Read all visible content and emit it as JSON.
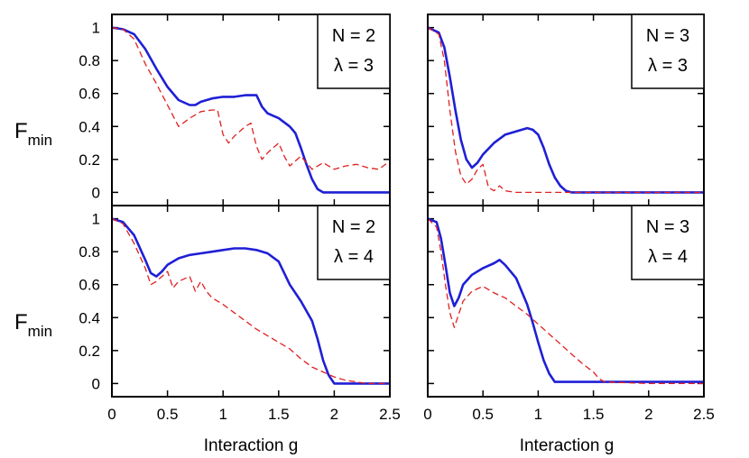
{
  "figure": {
    "ylabel_main": "F",
    "ylabel_sub": "min",
    "xlabel": "Interaction g"
  },
  "chart_data": [
    {
      "type": "line",
      "xlim": [
        0,
        2.5
      ],
      "ylim": [
        -0.08,
        1.08
      ],
      "xticks": [
        0,
        0.5,
        1,
        1.5,
        2,
        2.5
      ],
      "xtick_labels": [
        "0",
        "0.5",
        "1",
        "1.5",
        "2",
        "2.5"
      ],
      "yticks": [
        0,
        0.2,
        0.4,
        0.6,
        0.8,
        1
      ],
      "ytick_labels": [
        "0",
        "0.2",
        "0.4",
        "0.6",
        "0.8",
        "1"
      ],
      "legend_lines": [
        "N = 2",
        "λ = 3"
      ],
      "series": [
        {
          "color": "#1f1fd6",
          "style": "solid",
          "x": [
            0,
            0.1,
            0.2,
            0.3,
            0.4,
            0.5,
            0.6,
            0.7,
            0.75,
            0.8,
            0.9,
            1.0,
            1.1,
            1.2,
            1.25,
            1.3,
            1.35,
            1.4,
            1.5,
            1.6,
            1.65,
            1.7,
            1.75,
            1.8,
            1.85,
            1.9,
            2.0,
            2.2,
            2.5
          ],
          "y": [
            1.0,
            0.99,
            0.96,
            0.87,
            0.75,
            0.64,
            0.56,
            0.53,
            0.53,
            0.55,
            0.57,
            0.58,
            0.58,
            0.59,
            0.59,
            0.59,
            0.52,
            0.48,
            0.45,
            0.4,
            0.36,
            0.27,
            0.17,
            0.08,
            0.02,
            0.0,
            0.0,
            0.0,
            0.0
          ]
        },
        {
          "color": "#e02020",
          "style": "dashed",
          "x": [
            0,
            0.1,
            0.2,
            0.3,
            0.4,
            0.5,
            0.6,
            0.7,
            0.8,
            0.9,
            0.95,
            1.0,
            1.05,
            1.1,
            1.2,
            1.25,
            1.3,
            1.35,
            1.4,
            1.5,
            1.55,
            1.6,
            1.7,
            1.8,
            1.9,
            2.0,
            2.1,
            2.2,
            2.3,
            2.4,
            2.5
          ],
          "y": [
            1.0,
            0.99,
            0.93,
            0.78,
            0.66,
            0.53,
            0.4,
            0.45,
            0.49,
            0.5,
            0.5,
            0.35,
            0.3,
            0.34,
            0.4,
            0.42,
            0.28,
            0.2,
            0.24,
            0.3,
            0.22,
            0.16,
            0.22,
            0.14,
            0.18,
            0.14,
            0.16,
            0.17,
            0.15,
            0.14,
            0.19
          ]
        }
      ]
    },
    {
      "type": "line",
      "xlim": [
        0,
        2.5
      ],
      "ylim": [
        -0.08,
        1.08
      ],
      "xticks": [
        0,
        0.5,
        1,
        1.5,
        2,
        2.5
      ],
      "xtick_labels": [
        "0",
        "0.5",
        "1",
        "1.5",
        "2",
        "2.5"
      ],
      "yticks": [
        0,
        0.2,
        0.4,
        0.6,
        0.8,
        1
      ],
      "ytick_labels": [
        "0",
        "0.2",
        "0.4",
        "0.6",
        "0.8",
        "1"
      ],
      "legend_lines": [
        "N = 3",
        "λ = 3"
      ],
      "series": [
        {
          "color": "#1f1fd6",
          "style": "solid",
          "x": [
            0,
            0.1,
            0.15,
            0.2,
            0.25,
            0.3,
            0.35,
            0.4,
            0.45,
            0.5,
            0.6,
            0.7,
            0.8,
            0.9,
            0.95,
            1.0,
            1.05,
            1.1,
            1.15,
            1.2,
            1.25,
            1.3,
            1.5,
            1.8,
            2.1,
            2.5
          ],
          "y": [
            1.0,
            0.97,
            0.88,
            0.7,
            0.5,
            0.32,
            0.2,
            0.15,
            0.18,
            0.23,
            0.3,
            0.35,
            0.37,
            0.39,
            0.38,
            0.35,
            0.27,
            0.17,
            0.09,
            0.04,
            0.01,
            0.0,
            0.0,
            0.0,
            0.0,
            0.0
          ]
        },
        {
          "color": "#e02020",
          "style": "dashed",
          "x": [
            0,
            0.1,
            0.15,
            0.2,
            0.25,
            0.3,
            0.35,
            0.4,
            0.45,
            0.5,
            0.55,
            0.6,
            0.65,
            0.7,
            0.8,
            1.0,
            1.5,
            2.0,
            2.5
          ],
          "y": [
            1.0,
            0.96,
            0.8,
            0.5,
            0.25,
            0.1,
            0.05,
            0.08,
            0.14,
            0.17,
            0.03,
            0.01,
            0.04,
            0.01,
            0.0,
            0.0,
            0.0,
            0.0,
            0.0
          ]
        }
      ]
    },
    {
      "type": "line",
      "xlim": [
        0,
        2.5
      ],
      "ylim": [
        -0.08,
        1.08
      ],
      "xticks": [
        0,
        0.5,
        1,
        1.5,
        2,
        2.5
      ],
      "xtick_labels": [
        "0",
        "0.5",
        "1",
        "1.5",
        "2",
        "2.5"
      ],
      "yticks": [
        0,
        0.2,
        0.4,
        0.6,
        0.8,
        1
      ],
      "ytick_labels": [
        "0",
        "0.2",
        "0.4",
        "0.6",
        "0.8",
        "1"
      ],
      "legend_lines": [
        "N = 2",
        "λ = 4"
      ],
      "series": [
        {
          "color": "#1f1fd6",
          "style": "solid",
          "x": [
            0,
            0.1,
            0.2,
            0.3,
            0.35,
            0.4,
            0.45,
            0.5,
            0.6,
            0.7,
            0.8,
            0.9,
            1.0,
            1.1,
            1.2,
            1.3,
            1.4,
            1.5,
            1.55,
            1.6,
            1.7,
            1.8,
            1.85,
            1.9,
            1.95,
            2.0,
            2.1,
            2.5
          ],
          "y": [
            1.0,
            0.98,
            0.9,
            0.75,
            0.67,
            0.65,
            0.68,
            0.72,
            0.76,
            0.78,
            0.79,
            0.8,
            0.81,
            0.82,
            0.82,
            0.81,
            0.79,
            0.74,
            0.67,
            0.6,
            0.5,
            0.38,
            0.27,
            0.14,
            0.05,
            0.0,
            0.0,
            0.0
          ]
        },
        {
          "color": "#e02020",
          "style": "dashed",
          "x": [
            0,
            0.1,
            0.2,
            0.3,
            0.35,
            0.4,
            0.5,
            0.55,
            0.6,
            0.7,
            0.75,
            0.8,
            0.85,
            0.9,
            1.0,
            1.1,
            1.2,
            1.3,
            1.4,
            1.5,
            1.6,
            1.7,
            1.8,
            1.9,
            2.0,
            2.1,
            2.2,
            2.3,
            2.5
          ],
          "y": [
            1.0,
            0.97,
            0.85,
            0.7,
            0.6,
            0.62,
            0.68,
            0.58,
            0.62,
            0.65,
            0.56,
            0.62,
            0.56,
            0.52,
            0.48,
            0.43,
            0.38,
            0.33,
            0.29,
            0.25,
            0.21,
            0.15,
            0.1,
            0.07,
            0.04,
            0.02,
            0.01,
            0.0,
            0.0
          ]
        }
      ]
    },
    {
      "type": "line",
      "xlim": [
        0,
        2.5
      ],
      "ylim": [
        -0.08,
        1.08
      ],
      "xticks": [
        0,
        0.5,
        1,
        1.5,
        2,
        2.5
      ],
      "xtick_labels": [
        "0",
        "0.5",
        "1",
        "1.5",
        "2",
        "2.5"
      ],
      "yticks": [
        0,
        0.2,
        0.4,
        0.6,
        0.8,
        1
      ],
      "ytick_labels": [
        "0",
        "0.2",
        "0.4",
        "0.6",
        "0.8",
        "1"
      ],
      "legend_lines": [
        "N = 3",
        "λ = 4"
      ],
      "series": [
        {
          "color": "#1f1fd6",
          "style": "solid",
          "x": [
            0,
            0.08,
            0.12,
            0.16,
            0.2,
            0.24,
            0.28,
            0.32,
            0.4,
            0.5,
            0.6,
            0.65,
            0.7,
            0.8,
            0.9,
            0.95,
            1.0,
            1.05,
            1.1,
            1.15,
            1.2,
            1.5,
            2.0,
            2.5
          ],
          "y": [
            1.0,
            0.98,
            0.88,
            0.72,
            0.55,
            0.47,
            0.52,
            0.6,
            0.66,
            0.7,
            0.73,
            0.75,
            0.72,
            0.64,
            0.48,
            0.37,
            0.25,
            0.14,
            0.06,
            0.01,
            0.01,
            0.01,
            0.01,
            0.01
          ]
        },
        {
          "color": "#e02020",
          "style": "dashed",
          "x": [
            0,
            0.08,
            0.12,
            0.16,
            0.2,
            0.24,
            0.28,
            0.32,
            0.4,
            0.5,
            0.55,
            0.6,
            0.7,
            0.8,
            0.9,
            1.0,
            1.1,
            1.2,
            1.3,
            1.4,
            1.5,
            1.55,
            1.6,
            2.0,
            2.5
          ],
          "y": [
            1.0,
            0.95,
            0.8,
            0.6,
            0.43,
            0.34,
            0.42,
            0.5,
            0.56,
            0.59,
            0.57,
            0.55,
            0.52,
            0.47,
            0.42,
            0.36,
            0.3,
            0.24,
            0.18,
            0.12,
            0.07,
            0.03,
            0.01,
            0.0,
            0.0
          ]
        }
      ]
    }
  ]
}
